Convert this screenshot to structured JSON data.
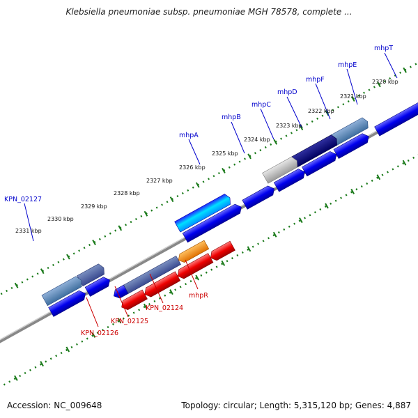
{
  "header": {
    "title": "Klebsiella pneumoniae subsp. pneumoniae MGH 78578, complete ..."
  },
  "footer": {
    "accession": "Accession: NC_009648",
    "summary": "Topology: circular; Length: 5,315,120 bp; Genes: 4,887"
  },
  "colors": {
    "forward_label": "#0000cc",
    "reverse_label": "#cc0000",
    "tick": "#1a7a1a",
    "backbone": "#888888"
  },
  "kbp_ticks": [
    "2320 kbp",
    "2321 kbp",
    "2322 kbp",
    "2323 kbp",
    "2324 kbp",
    "2325 kbp",
    "2326 kbp",
    "2327 kbp",
    "2328 kbp",
    "2329 kbp",
    "2330 kbp",
    "2331 kbp"
  ],
  "forward_labels": [
    "mhpT",
    "mhpE",
    "mhpF",
    "mhpD",
    "mhpC",
    "mhpB",
    "mhpA",
    "KPN_02127"
  ],
  "reverse_labels": [
    "mhpR",
    "KPN_02124",
    "KPN_02125",
    "KPN_02126"
  ]
}
